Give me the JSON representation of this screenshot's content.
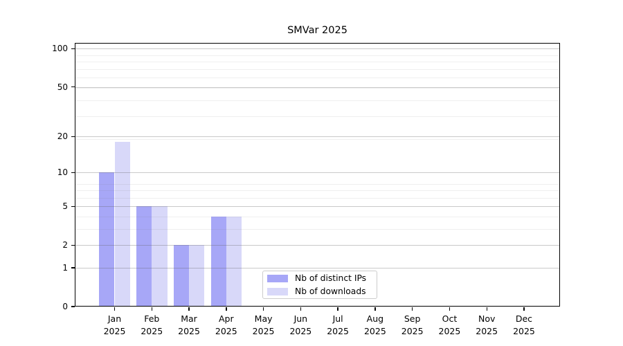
{
  "title": "SMVar 2025",
  "chart_data": {
    "type": "bar",
    "title": "SMVar 2025",
    "categories": [
      "Jan",
      "Feb",
      "Mar",
      "Apr",
      "May",
      "Jun",
      "Jul",
      "Aug",
      "Sep",
      "Oct",
      "Nov",
      "Dec"
    ],
    "category_year": "2025",
    "series": [
      {
        "name": "Nb of distinct IPs",
        "color": "#a7a7f7",
        "values": [
          10,
          5,
          2,
          4,
          0,
          0,
          0,
          0,
          0,
          0,
          0,
          0
        ]
      },
      {
        "name": "Nb of downloads",
        "color": "#d8d8f9",
        "values": [
          18,
          5,
          2,
          4,
          0,
          0,
          0,
          0,
          0,
          0,
          0,
          0
        ]
      }
    ],
    "y_axis": {
      "scale": "log10(1+v)",
      "ticks": [
        0,
        1,
        2,
        5,
        10,
        20,
        50,
        100
      ],
      "minor_ticks": [
        3,
        4,
        6,
        7,
        8,
        19,
        29,
        39,
        49,
        59,
        69,
        79,
        89
      ],
      "range": [
        0,
        111
      ]
    },
    "x_axis": {
      "label_lines": [
        "month",
        "year"
      ]
    },
    "legend": {
      "position": "bottom-center"
    },
    "grid": "horizontal",
    "colors": {
      "background": "#ffffff",
      "axis": "#000000",
      "major_grid": "#c6c6c6",
      "minor_grid": "#ededed"
    }
  }
}
